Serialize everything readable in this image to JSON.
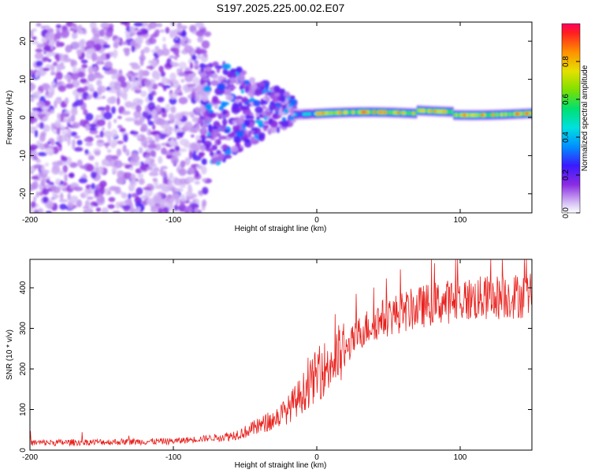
{
  "title": "S197.2025.225.00.02.E07",
  "colors": {
    "snr_line": "#e8201c",
    "axis": "#000000",
    "scatter_low": "#c9a8f2",
    "scatter_high": "#6a00e6"
  },
  "chart_data": [
    {
      "type": "heatmap",
      "name": "spectrogram",
      "xlabel": "Height of straight line (km)",
      "ylabel": "Frequency (Hz)",
      "xlim": [
        -200,
        150
      ],
      "ylim": [
        -25,
        25
      ],
      "x_ticks": [
        -200,
        -100,
        0,
        100
      ],
      "y_ticks": [
        -20,
        -10,
        0,
        10,
        20
      ],
      "colorbar": {
        "label": "Normalized spectral amplitude",
        "range": [
          0,
          1
        ],
        "ticks": [
          "0.0",
          "0.2",
          "0.4",
          "0.6",
          "0.8"
        ],
        "colormap": "rainbow (purple-blue-cyan-green-yellow-red)"
      },
      "features": [
        {
          "x_range": [
            -200,
            -80
          ],
          "freq_range": [
            -25,
            25
          ],
          "amplitude": "low-moderate (0.05-0.2)",
          "description": "diffuse scatter"
        },
        {
          "x_range": [
            -80,
            -15
          ],
          "freq_range": [
            -10,
            15
          ],
          "amplitude": "moderate (0.1-0.4)",
          "description": "converging scatter"
        },
        {
          "x_range": [
            -15,
            150
          ],
          "freq_center": 1,
          "freq_width": 3,
          "amplitude": "high (0.6-1.0)",
          "description": "narrow carrier line"
        }
      ]
    },
    {
      "type": "line",
      "name": "snr",
      "xlabel": "Height of straight line (km)",
      "ylabel": "SNR (10 * v/v)",
      "xlim": [
        -200,
        150
      ],
      "ylim": [
        0,
        470
      ],
      "x_ticks": [
        -200,
        -100,
        0,
        100
      ],
      "y_ticks": [
        0,
        100,
        200,
        300,
        400
      ],
      "series": [
        {
          "name": "SNR",
          "x_anchor": [
            -200,
            -150,
            -100,
            -80,
            -60,
            -50,
            -40,
            -30,
            -20,
            -10,
            0,
            10,
            20,
            30,
            40,
            50,
            60,
            70,
            80,
            90,
            100,
            110,
            120,
            130,
            140,
            150
          ],
          "y_anchor": [
            18,
            20,
            22,
            28,
            35,
            45,
            60,
            75,
            100,
            140,
            185,
            215,
            245,
            290,
            315,
            330,
            340,
            350,
            360,
            365,
            370,
            372,
            375,
            378,
            380,
            382
          ]
        }
      ]
    }
  ]
}
